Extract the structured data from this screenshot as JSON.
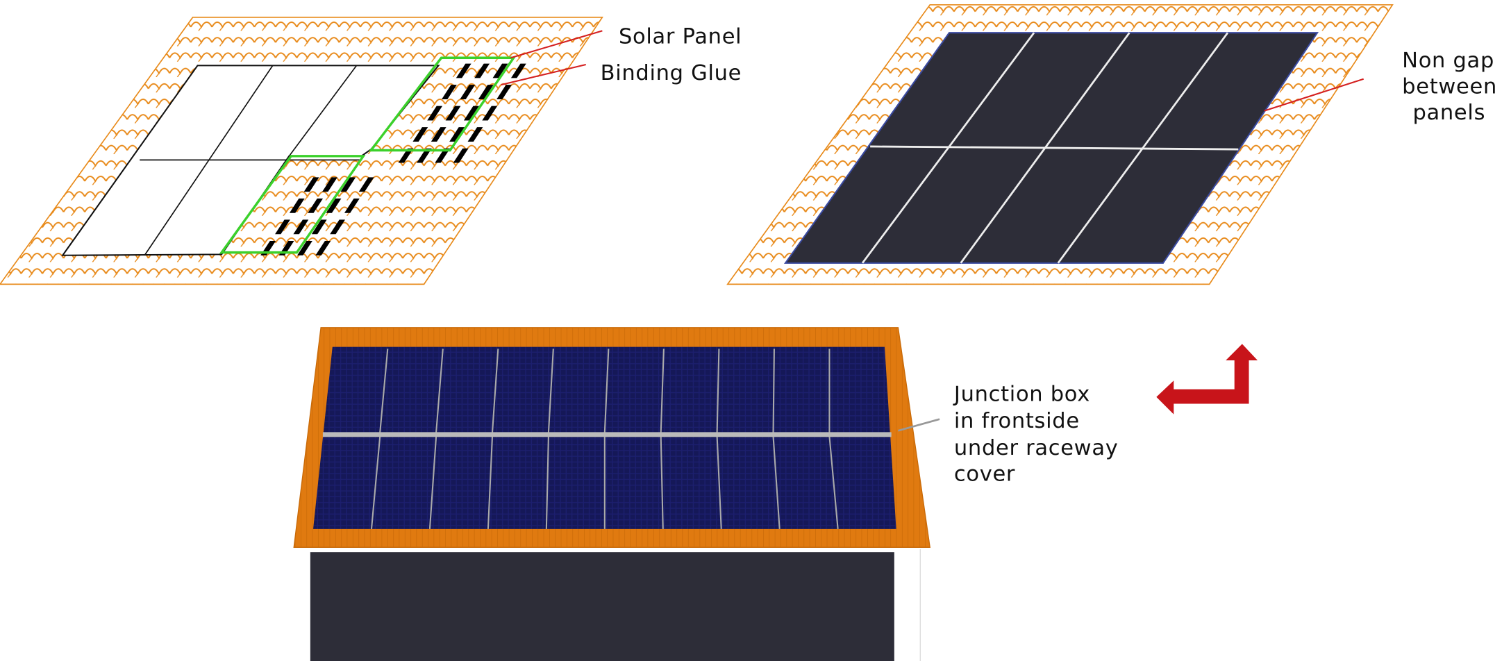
{
  "labels": {
    "solar_panel": "Solar Panel",
    "binding_glue": "Binding Glue",
    "non_gap": [
      "Non gap",
      "between",
      "panels"
    ],
    "junction_box": [
      "Junction box",
      "in frontside",
      "under raceway",
      "cover"
    ]
  }
}
